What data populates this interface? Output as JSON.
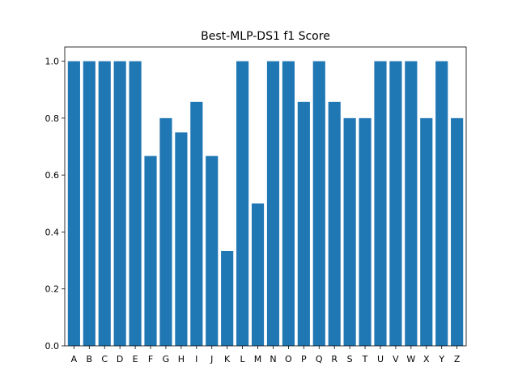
{
  "chart_data": {
    "type": "bar",
    "title": "Best-MLP-DS1 f1 Score",
    "xlabel": "",
    "ylabel": "",
    "categories": [
      "A",
      "B",
      "C",
      "D",
      "E",
      "F",
      "G",
      "H",
      "I",
      "J",
      "K",
      "L",
      "M",
      "N",
      "O",
      "P",
      "Q",
      "R",
      "S",
      "T",
      "U",
      "V",
      "W",
      "X",
      "Y",
      "Z"
    ],
    "values": [
      1.0,
      1.0,
      1.0,
      1.0,
      1.0,
      0.667,
      0.8,
      0.75,
      0.857,
      0.667,
      0.333,
      1.0,
      0.5,
      1.0,
      1.0,
      0.857,
      1.0,
      0.857,
      0.8,
      0.8,
      1.0,
      1.0,
      1.0,
      0.8,
      1.0,
      0.8
    ],
    "ylim": [
      0,
      1.05
    ],
    "yticks": [
      0.0,
      0.2,
      0.4,
      0.6,
      0.8,
      1.0
    ],
    "ytick_labels": [
      "0.0",
      "0.2",
      "0.4",
      "0.6",
      "0.8",
      "1.0"
    ],
    "grid": false,
    "legend": false,
    "bar_color": "#1f77b4"
  }
}
